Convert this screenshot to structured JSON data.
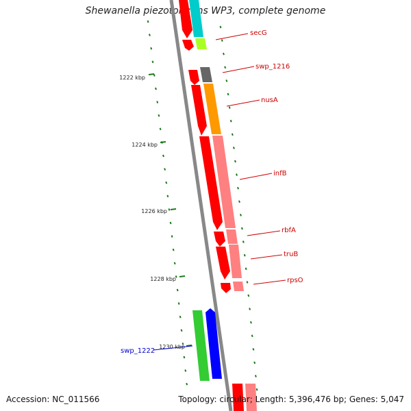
{
  "header": {
    "title": "Shewanella piezotolerans WP3, complete genome"
  },
  "footer": {
    "accession": "Accession: NC_011566",
    "topology": "Topology: circular",
    "length": "Length: 5,396,476 bp",
    "genes": "Genes: 5,047"
  },
  "colors": {
    "backbone": "#888888",
    "tick": "#1a7a1a",
    "gene_label": "#cc0000",
    "highlight_label": "#0000cc"
  },
  "ruler_labels": [
    "1222 kbp",
    "1224 kbp",
    "1226 kbp",
    "1228 kbp",
    "1230 kbp"
  ],
  "gene_labels": [
    {
      "name": "secG",
      "color": "red"
    },
    {
      "name": "swp_1216",
      "color": "red"
    },
    {
      "name": "nusA",
      "color": "red"
    },
    {
      "name": "infB",
      "color": "red"
    },
    {
      "name": "rbfA",
      "color": "red"
    },
    {
      "name": "truB",
      "color": "red"
    },
    {
      "name": "rpsO",
      "color": "red"
    },
    {
      "name": "swp_1222",
      "color": "blue"
    }
  ]
}
